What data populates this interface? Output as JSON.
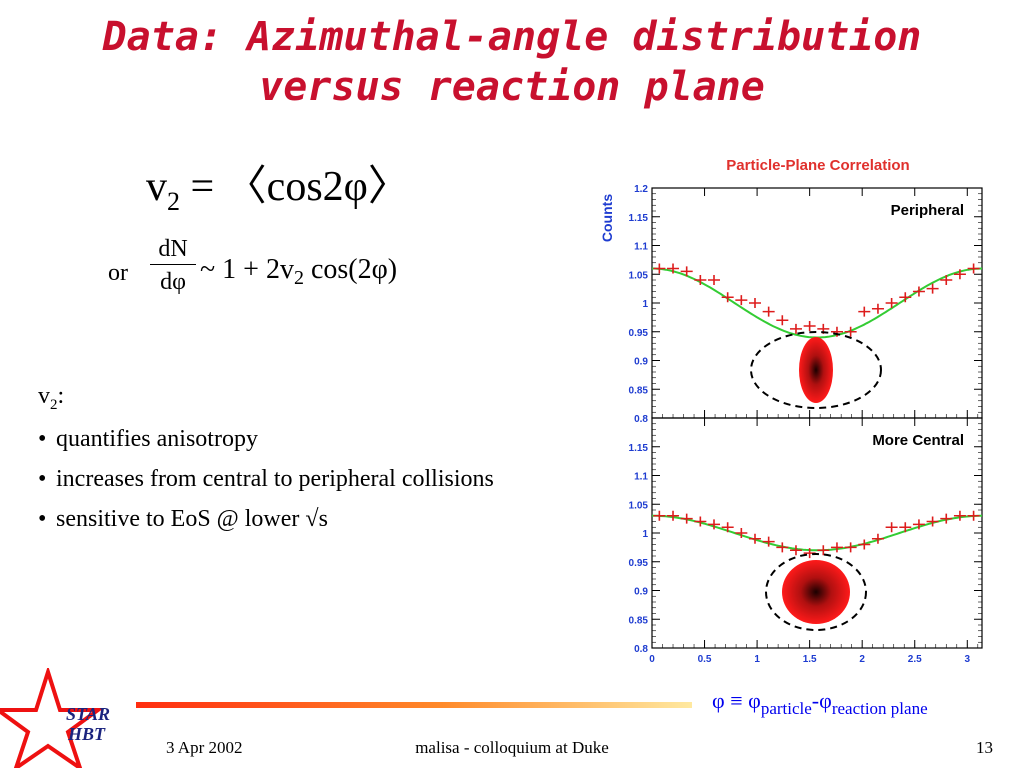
{
  "slide": {
    "title_line1": "Data: Azimuthal-angle distribution",
    "title_line2": "versus reaction plane",
    "eq1": {
      "lhs": "v",
      "lhs_sub": "2",
      "rhs": " = 〈cos2φ〉"
    },
    "eq2": {
      "prefix": "or",
      "num": "dN",
      "den": "dφ",
      "rhs_pre": "~ 1 + 2v",
      "rhs_sub": "2",
      "rhs_post": " cos(2φ)"
    },
    "bullets_header": {
      "main": "v",
      "sub": "2",
      "tail": ":"
    },
    "bullets": [
      "quantifies anisotropy",
      "increases from central to peripheral collisions",
      "sensitive to EoS @ lower √s"
    ],
    "bullet_marker": "•",
    "phi_def": {
      "a": "φ ≡ φ",
      "sub1": "particle",
      "b": "-φ",
      "sub2": "reaction plane"
    },
    "footer": {
      "date": "3 Apr 2002",
      "center": "malisa - colloquium at Duke",
      "page": "13"
    },
    "logo": {
      "line1": "STAR",
      "line2": "HBT"
    }
  },
  "chart_data": {
    "type": "scatter",
    "title": "Particle-Plane Correlation",
    "ylabel": "Counts",
    "xlim": [
      0,
      3.14
    ],
    "x_ticks": [
      "0",
      "0.5",
      "1",
      "1.5",
      "2",
      "2.5",
      "3"
    ],
    "colors": {
      "title": "#e0312d",
      "ylabel": "#1e3cd0",
      "markers": "#dd1c1c",
      "fit": "#33cc33",
      "tick_labels": "#1e3cd0"
    },
    "panels": [
      {
        "label": "Peripheral",
        "ylim": [
          0.8,
          1.2
        ],
        "y_ticks": [
          "0.8",
          "0.85",
          "0.9",
          "0.95",
          "1",
          "1.05",
          "1.1",
          "1.15",
          "1.2"
        ],
        "fit_v2": 0.06,
        "x": [
          0.07,
          0.2,
          0.33,
          0.46,
          0.59,
          0.72,
          0.85,
          0.98,
          1.11,
          1.24,
          1.37,
          1.5,
          1.63,
          1.76,
          1.89,
          2.02,
          2.15,
          2.28,
          2.41,
          2.54,
          2.67,
          2.8,
          2.93,
          3.06
        ],
        "y": [
          1.06,
          1.06,
          1.055,
          1.04,
          1.04,
          1.01,
          1.005,
          1.0,
          0.985,
          0.97,
          0.955,
          0.96,
          0.955,
          0.95,
          0.95,
          0.985,
          0.99,
          1.0,
          1.01,
          1.02,
          1.025,
          1.04,
          1.05,
          1.06
        ]
      },
      {
        "label": "More Central",
        "ylim": [
          0.8,
          1.2
        ],
        "y_ticks": [
          "0.8",
          "0.85",
          "0.9",
          "0.95",
          "1",
          "1.05",
          "1.1",
          "1.15"
        ],
        "fit_v2": 0.03,
        "x": [
          0.07,
          0.2,
          0.33,
          0.46,
          0.59,
          0.72,
          0.85,
          0.98,
          1.11,
          1.24,
          1.37,
          1.5,
          1.63,
          1.76,
          1.89,
          2.02,
          2.15,
          2.28,
          2.41,
          2.54,
          2.67,
          2.8,
          2.93,
          3.06
        ],
        "y": [
          1.03,
          1.03,
          1.025,
          1.02,
          1.015,
          1.01,
          1.0,
          0.99,
          0.985,
          0.975,
          0.97,
          0.965,
          0.97,
          0.975,
          0.975,
          0.98,
          0.99,
          1.01,
          1.01,
          1.015,
          1.02,
          1.025,
          1.03,
          1.03
        ]
      }
    ]
  }
}
